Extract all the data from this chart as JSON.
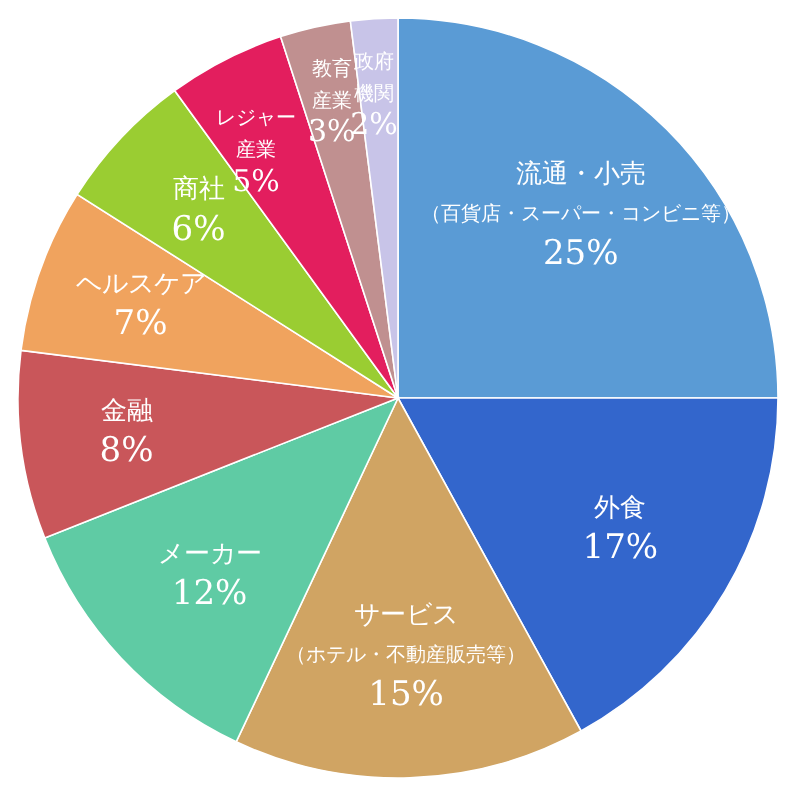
{
  "chart_data": {
    "type": "pie",
    "categories": [
      "流通・小売（百貨店・スーパー・コンビニ等）",
      "外食",
      "サービス（ホテル・不動産販売等）",
      "メーカー",
      "金融",
      "ヘルスケア",
      "商社",
      "レジャー産業",
      "教育産業",
      "政府機関"
    ],
    "values": [
      25,
      17,
      15,
      12,
      8,
      7,
      6,
      5,
      3,
      2
    ],
    "value_labels": [
      "25%",
      "17%",
      "15%",
      "12%",
      "8%",
      "7%",
      "6%",
      "5%",
      "3%",
      "2%"
    ],
    "colors": [
      "#5a9bd5",
      "#3366cc",
      "#d0a463",
      "#5fcba4",
      "#c9565a",
      "#f0a35e",
      "#9acd32",
      "#e31e5e",
      "#c09090",
      "#c8c4e8"
    ]
  }
}
